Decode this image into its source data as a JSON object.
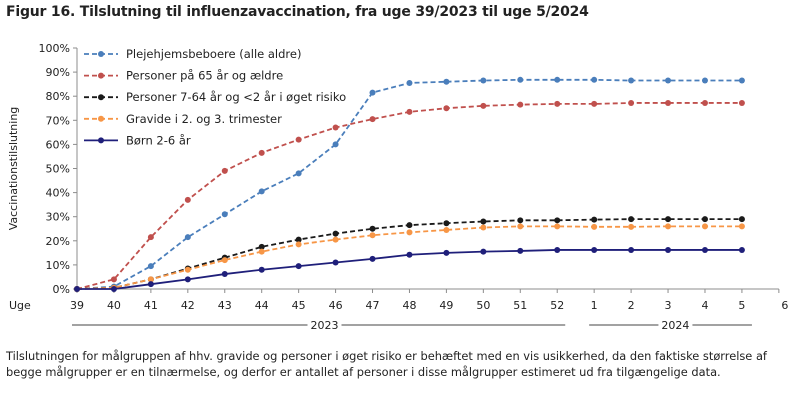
{
  "title": "Figur 16. Tilslutning til influenzavaccination, fra uge 39/2023 til uge 5/2024",
  "note": "Tilslutningen for målgruppen af hhv. gravide og personer i øget risiko er behæftet med en vis usikkerhed, da den faktiske størrelse af begge målgrupper er en tilnærmelse, og derfor er antallet af personer i disse målgrupper estimeret ud fra tilgængelige data.",
  "chart_data": {
    "type": "line",
    "ylabel": "Vaccinationstilslutning",
    "xlabel_prefix": "Uge",
    "categories": [
      "39",
      "40",
      "41",
      "42",
      "43",
      "44",
      "45",
      "46",
      "47",
      "48",
      "49",
      "50",
      "51",
      "52",
      "1",
      "2",
      "3",
      "4",
      "5"
    ],
    "extra_tick": "6",
    "year_labels": [
      "2023",
      "2024"
    ],
    "yticks": [
      "0%",
      "10%",
      "20%",
      "30%",
      "40%",
      "50%",
      "60%",
      "70%",
      "80%",
      "90%",
      "100%"
    ],
    "ylim": [
      0,
      100
    ],
    "legend_position": "top-left",
    "series": [
      {
        "name": "Plejehjemsbeboere (alle aldre)",
        "color": "#4a7ebb",
        "dash": true,
        "values": [
          0,
          1,
          9.5,
          21.5,
          31,
          40.5,
          48,
          60,
          81.5,
          85.5,
          86,
          86.5,
          86.8,
          86.8,
          86.8,
          86.5,
          86.5,
          86.5,
          86.5
        ]
      },
      {
        "name": "Personer på 65 år og ældre",
        "color": "#c0504d",
        "dash": true,
        "values": [
          0,
          4,
          21.5,
          37,
          49,
          56.5,
          62,
          67,
          70.5,
          73.5,
          75,
          76,
          76.5,
          76.8,
          76.8,
          77.2,
          77.2,
          77.2,
          77.2
        ]
      },
      {
        "name": "Personer 7-64 år og <2 år i øget risiko",
        "color": "#1a1a1a",
        "dash": true,
        "values": [
          0,
          0.5,
          4,
          8.5,
          13,
          17.5,
          20.5,
          23,
          25,
          26.5,
          27.3,
          28,
          28.5,
          28.5,
          28.8,
          29,
          29,
          29,
          29
        ]
      },
      {
        "name": "Gravide i 2. og 3. trimester",
        "color": "#f79646",
        "dash": true,
        "values": [
          0,
          0.5,
          4,
          8,
          12,
          15.5,
          18.5,
          20.5,
          22.3,
          23.5,
          24.5,
          25.5,
          26,
          26,
          25.8,
          25.8,
          26,
          26,
          26
        ]
      },
      {
        "name": "Børn 2-6 år",
        "color": "#1f1f7a",
        "dash": false,
        "values": [
          0,
          0,
          2,
          4,
          6.2,
          8,
          9.5,
          11,
          12.5,
          14.2,
          15,
          15.5,
          15.8,
          16.2,
          16.2,
          16.2,
          16.2,
          16.2,
          16.2
        ]
      }
    ]
  }
}
